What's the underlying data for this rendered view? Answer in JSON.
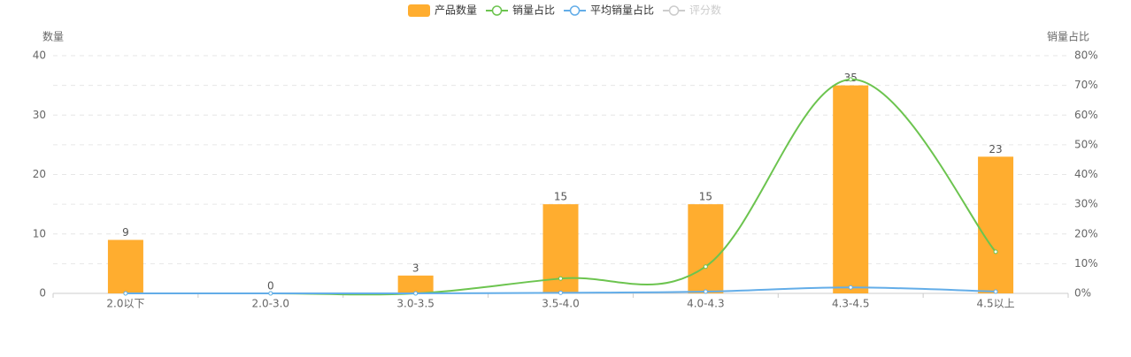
{
  "chart_data": {
    "type": "bar-line",
    "categories": [
      "2.0以下",
      "2.0-3.0",
      "3.0-3.5",
      "3.5-4.0",
      "4.0-4.3",
      "4.3-4.5",
      "4.5以上"
    ],
    "series": [
      {
        "name": "产品数量",
        "type": "bar",
        "color": "#ffad2f",
        "values": [
          9,
          0,
          3,
          15,
          15,
          35,
          23
        ]
      },
      {
        "name": "销量占比",
        "type": "line",
        "axis": "y2",
        "color": "#6cc44f",
        "values": [
          0,
          0,
          0,
          5,
          9,
          72,
          14
        ]
      },
      {
        "name": "平均销量占比",
        "type": "line",
        "axis": "y2",
        "color": "#63ade8",
        "values": [
          0,
          0,
          0,
          0.2,
          0.6,
          2,
          0.6
        ]
      },
      {
        "name": "评分数",
        "type": "line",
        "color": "#cccccc",
        "hidden": true
      }
    ],
    "y_label": "数量",
    "y2_label": "销量占比",
    "ylim": [
      0,
      40
    ],
    "yticks": [
      0,
      10,
      20,
      30,
      40
    ],
    "y2lim": [
      0,
      80
    ],
    "y2ticks": [
      {
        "value": 0,
        "label": "0%"
      },
      {
        "value": 10,
        "label": "10%"
      },
      {
        "value": 20,
        "label": "20%"
      },
      {
        "value": 30,
        "label": "30%"
      },
      {
        "value": 40,
        "label": "40%"
      },
      {
        "value": 50,
        "label": "50%"
      },
      {
        "value": 60,
        "label": "60%"
      },
      {
        "value": 70,
        "label": "70%"
      },
      {
        "value": 80,
        "label": "80%"
      }
    ],
    "grid": true
  }
}
